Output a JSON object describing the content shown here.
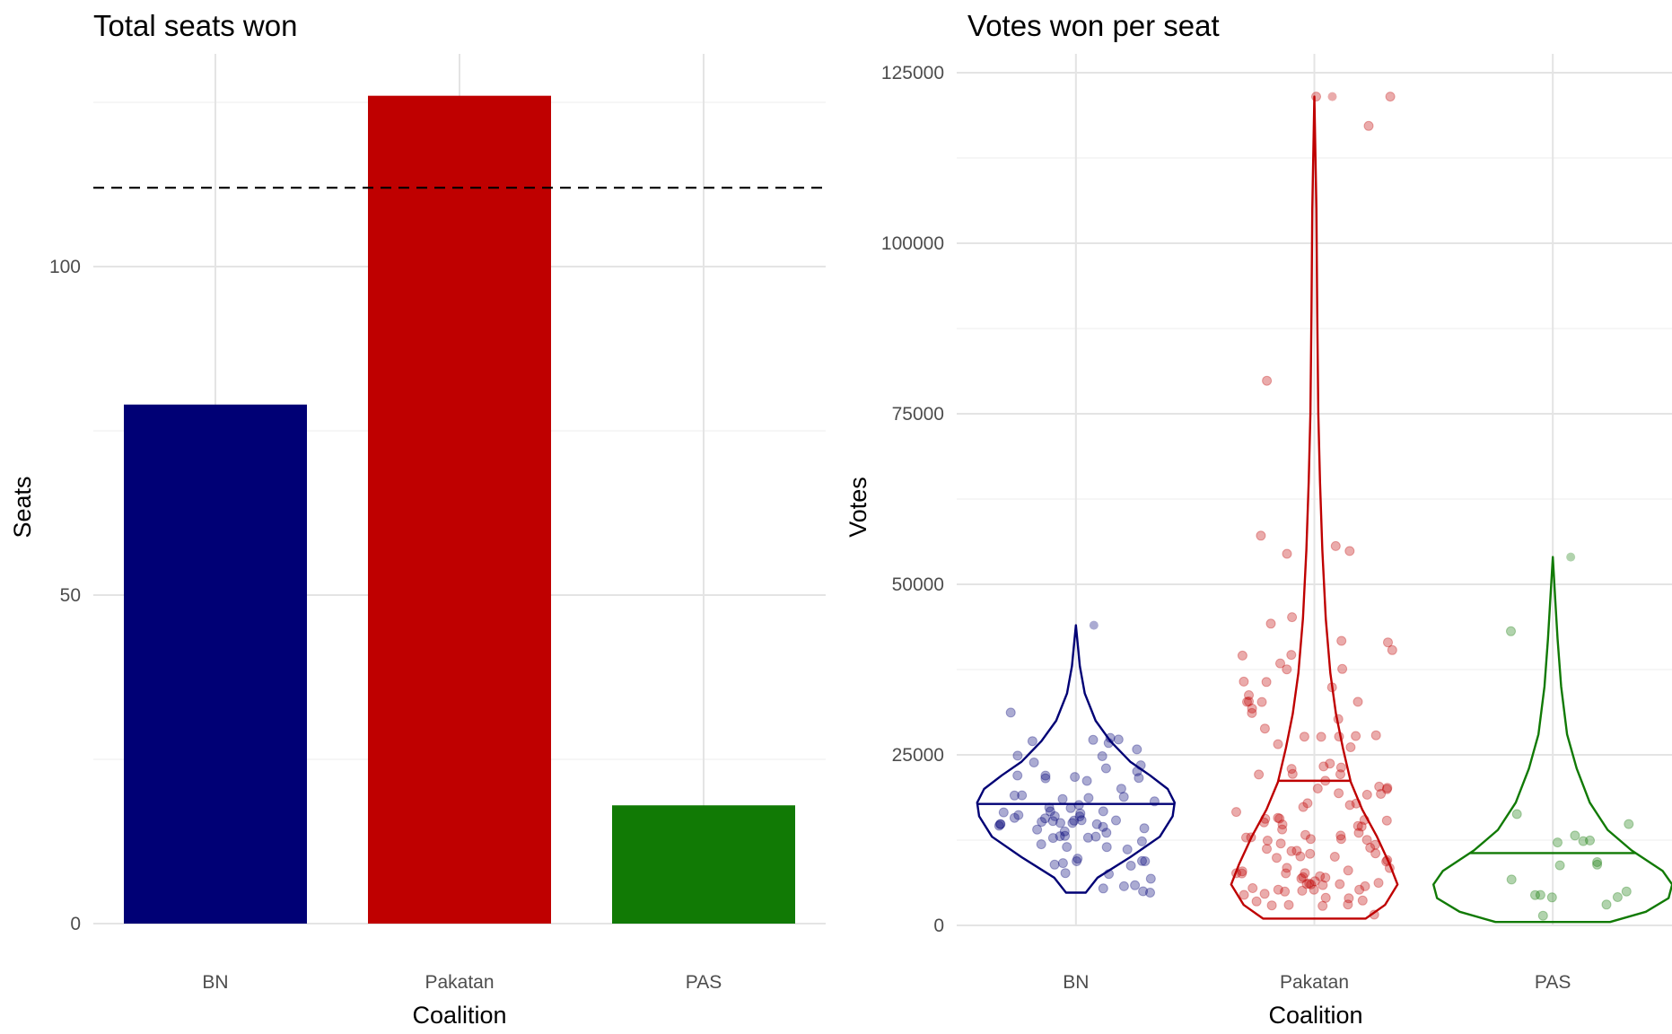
{
  "chart_data": [
    {
      "type": "bar",
      "title": "Total seats won",
      "xlabel": "Coalition",
      "ylabel": "Seats",
      "categories": [
        "BN",
        "Pakatan",
        "PAS"
      ],
      "values": [
        79,
        126,
        18
      ],
      "colors": [
        "#000075",
        "#bf0000",
        "#117a05"
      ],
      "reference_line": {
        "value": 112,
        "style": "dashed",
        "color": "#000000"
      },
      "ylim": [
        0,
        130
      ],
      "yticks": [
        0,
        50,
        100
      ],
      "grid": true
    },
    {
      "type": "violin",
      "title": "Votes won per seat",
      "xlabel": "Coalition",
      "ylabel": "Votes",
      "categories": [
        "BN",
        "Pakatan",
        "PAS"
      ],
      "colors": [
        "#000075",
        "#bf0000",
        "#117a05"
      ],
      "ylim": [
        0,
        125000
      ],
      "yticks": [
        0,
        25000,
        50000,
        75000,
        100000,
        125000
      ],
      "grid": true,
      "series": [
        {
          "min": 4800,
          "max": 44000,
          "median": 17800,
          "n_points": 79
        },
        {
          "min": 1000,
          "max": 121500,
          "median": 21200,
          "n_points": 126
        },
        {
          "min": 500,
          "max": 54000,
          "median": 10600,
          "n_points": 18
        }
      ]
    }
  ]
}
